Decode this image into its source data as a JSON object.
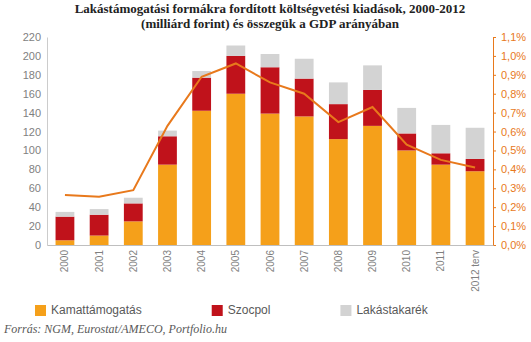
{
  "chart_data": {
    "type": "bar",
    "title": "Lakástámogatási formákra fordított költségvetési kiadások, 2000-2012 (milliárd forint) és összegük a GDP arányában",
    "annotations": [
      "Forrás: NGM, Eurostat/AMECO, Portfolio.hu"
    ],
    "categories": [
      "2000",
      "2001",
      "2002",
      "2003",
      "2004",
      "2005",
      "2006",
      "2007",
      "2008",
      "2009",
      "2010",
      "2011",
      "2012 terv"
    ],
    "stacked": true,
    "legend": "bottom",
    "grid": false,
    "series": [
      {
        "name": "Kamattámogatás",
        "color": "#f5a01a",
        "values": [
          5,
          10,
          25,
          85,
          142,
          160,
          139,
          136,
          112,
          126,
          100,
          85,
          78
        ]
      },
      {
        "name": "Szocpol",
        "color": "#c0121b",
        "values": [
          25,
          22,
          19,
          30,
          35,
          40,
          49,
          40,
          37,
          38,
          18,
          12,
          13
        ]
      },
      {
        "name": "Lakástakarék",
        "color": "#d3d3d3",
        "values": [
          5,
          6,
          6,
          6,
          7,
          11,
          14,
          21,
          23,
          26,
          27,
          30,
          33
        ]
      },
      {
        "type": "line",
        "axis": "y2",
        "color": "#e8791c",
        "values": [
          0.265,
          0.255,
          0.29,
          0.63,
          0.89,
          0.96,
          0.86,
          0.8,
          0.65,
          0.73,
          0.53,
          0.45,
          0.41
        ]
      }
    ],
    "ylim": [
      0,
      220
    ],
    "yticks": [
      0,
      20,
      40,
      60,
      80,
      100,
      120,
      140,
      160,
      180,
      200,
      220
    ],
    "y2lim": [
      0,
      1.1
    ],
    "y2ticks": [
      {
        "value": 0,
        "label": "0,0%"
      },
      {
        "value": 0.1,
        "label": "0,1%"
      },
      {
        "value": 0.2,
        "label": "0,2%"
      },
      {
        "value": 0.3,
        "label": "0,3%"
      },
      {
        "value": 0.4,
        "label": "0,4%"
      },
      {
        "value": 0.5,
        "label": "0,5%"
      },
      {
        "value": 0.6,
        "label": "0,6%"
      },
      {
        "value": 0.7,
        "label": "0,7%"
      },
      {
        "value": 0.8,
        "label": "0,8%"
      },
      {
        "value": 0.9,
        "label": "0,9%"
      },
      {
        "value": 1.0,
        "label": "1,0%"
      },
      {
        "value": 1.1,
        "label": "1,1%"
      }
    ]
  }
}
